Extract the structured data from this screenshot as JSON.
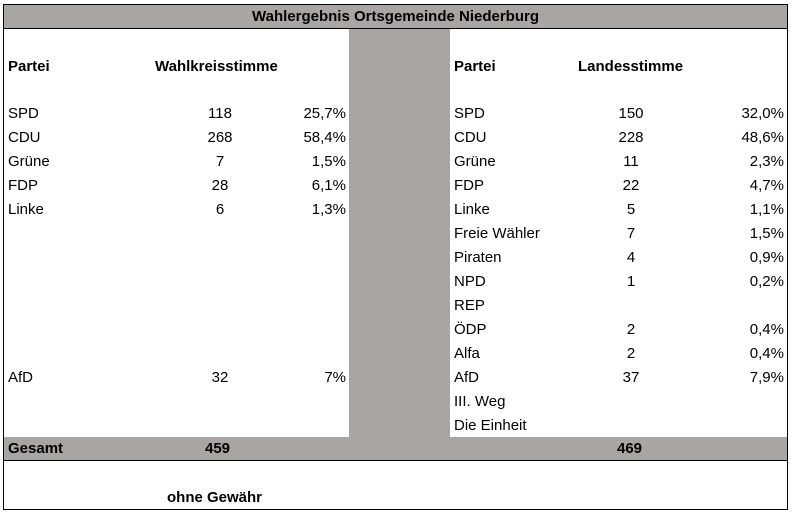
{
  "title": "Wahlergebnis Ortsgemeinde Niederburg",
  "left": {
    "header_party": "Partei",
    "header_votes": "Wahlkreisstimme",
    "rows": [
      {
        "party": "SPD",
        "votes": "118",
        "pct": "25,7%"
      },
      {
        "party": "CDU",
        "votes": "268",
        "pct": "58,4%"
      },
      {
        "party": "Grüne",
        "votes": "7",
        "pct": "1,5%"
      },
      {
        "party": "FDP",
        "votes": "28",
        "pct": "6,1%"
      },
      {
        "party": "Linke",
        "votes": "6",
        "pct": "1,3%"
      },
      {
        "party": "AfD",
        "votes": "32",
        "pct": "7%"
      }
    ]
  },
  "right": {
    "header_party": "Partei",
    "header_votes": "Landesstimme",
    "rows": [
      {
        "party": "SPD",
        "votes": "150",
        "pct": "32,0%"
      },
      {
        "party": "CDU",
        "votes": "228",
        "pct": "48,6%"
      },
      {
        "party": "Grüne",
        "votes": "11",
        "pct": "2,3%"
      },
      {
        "party": "FDP",
        "votes": "22",
        "pct": "4,7%"
      },
      {
        "party": "Linke",
        "votes": "5",
        "pct": "1,1%"
      },
      {
        "party": "Freie Wähler",
        "votes": "7",
        "pct": "1,5%"
      },
      {
        "party": "Piraten",
        "votes": "4",
        "pct": "0,9%"
      },
      {
        "party": "NPD",
        "votes": "1",
        "pct": "0,2%"
      },
      {
        "party": "REP",
        "votes": "",
        "pct": ""
      },
      {
        "party": "ÖDP",
        "votes": "2",
        "pct": "0,4%"
      },
      {
        "party": "Alfa",
        "votes": "2",
        "pct": "0,4%"
      },
      {
        "party": "AfD",
        "votes": "37",
        "pct": "7,9%"
      },
      {
        "party": "III. Weg",
        "votes": "",
        "pct": ""
      },
      {
        "party": "Die Einheit",
        "votes": "",
        "pct": ""
      }
    ]
  },
  "total": {
    "label": "Gesamt",
    "left_votes": "459",
    "right_votes": "469"
  },
  "footer": "ohne Gewähr"
}
